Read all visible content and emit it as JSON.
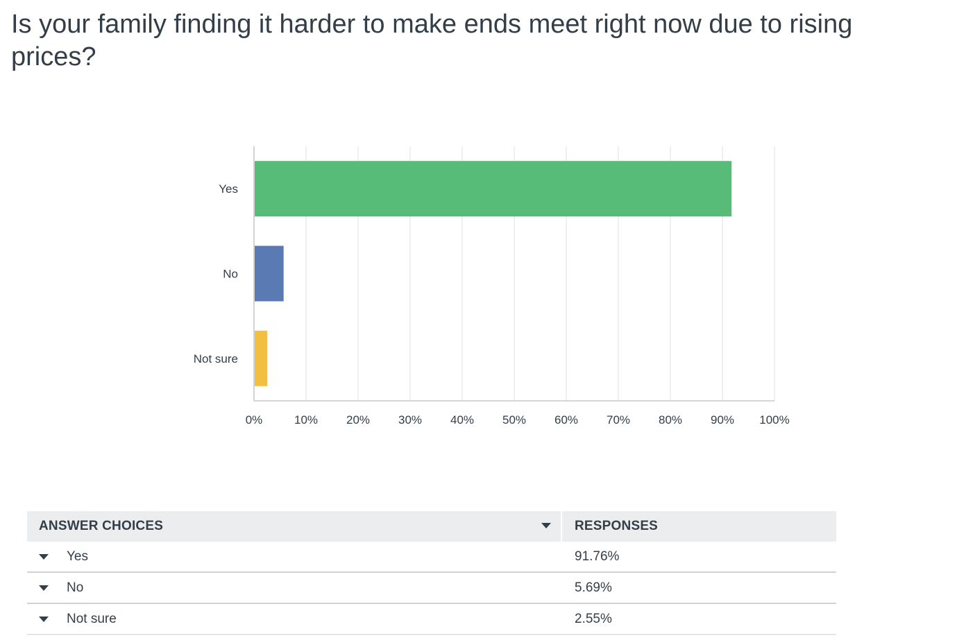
{
  "question": {
    "title": "Is your family finding it harder to make ends meet right now due to rising prices?"
  },
  "chart_data": {
    "type": "bar",
    "orientation": "horizontal",
    "title": "",
    "xlabel": "",
    "ylabel": "",
    "categories": [
      "Yes",
      "No",
      "Not sure"
    ],
    "values": [
      91.76,
      5.69,
      2.55
    ],
    "colors": [
      "#57bc78",
      "#5a7ab4",
      "#f2bf42"
    ],
    "xlim": [
      0,
      100
    ],
    "ticks": [
      "0%",
      "10%",
      "20%",
      "30%",
      "40%",
      "50%",
      "60%",
      "70%",
      "80%",
      "90%",
      "100%"
    ],
    "grid": true,
    "legend": "none"
  },
  "table": {
    "headers": {
      "choice": "ANSWER CHOICES",
      "responses": "RESPONSES"
    },
    "rows": [
      {
        "choice": "Yes",
        "response": "91.76%"
      },
      {
        "choice": "No",
        "response": "5.69%"
      },
      {
        "choice": "Not sure",
        "response": "2.55%"
      }
    ]
  }
}
